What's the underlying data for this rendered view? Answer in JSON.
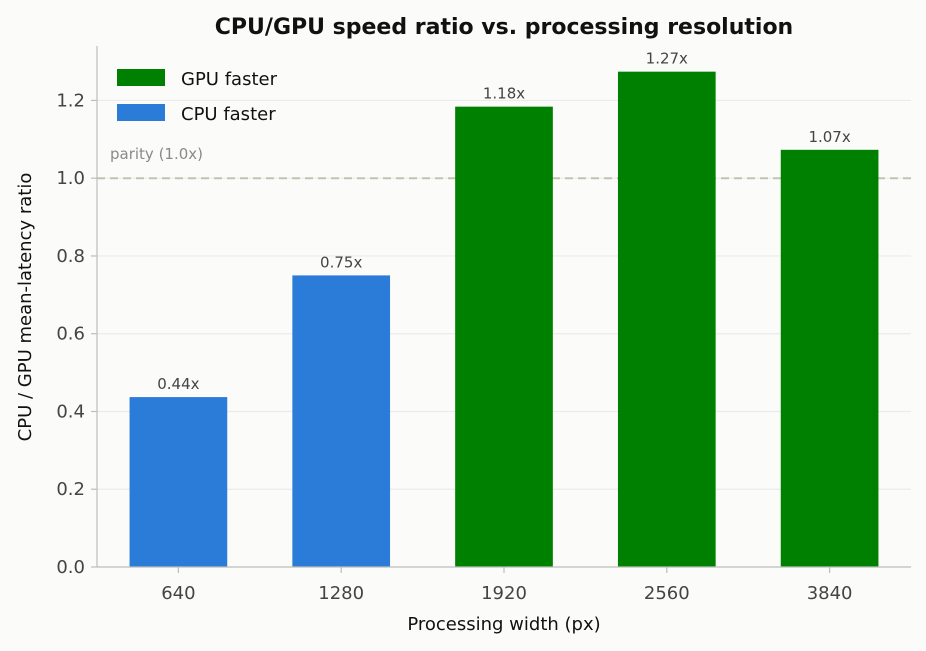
{
  "chart_data": {
    "type": "bar",
    "title": "CPU/GPU speed ratio vs. processing resolution",
    "xlabel": "Processing width (px)",
    "ylabel": "CPU / GPU mean-latency ratio",
    "categories": [
      "640",
      "1280",
      "1920",
      "2560",
      "3840"
    ],
    "values": [
      0.437,
      0.75,
      1.184,
      1.274,
      1.073
    ],
    "data_labels": [
      "0.44x",
      "0.75x",
      "1.18x",
      "1.27x",
      "1.07x"
    ],
    "bar_groups": [
      "CPU faster",
      "CPU faster",
      "GPU faster",
      "GPU faster",
      "GPU faster"
    ],
    "ylim": [
      0,
      1.34
    ],
    "yticks": [
      "0.0",
      "0.2",
      "0.4",
      "0.6",
      "0.8",
      "1.0",
      "1.2"
    ],
    "ytick_values": [
      0,
      0.2,
      0.4,
      0.6,
      0.8,
      1.0,
      1.2
    ],
    "reference_line": {
      "value": 1.0,
      "label": "parity (1.0x)",
      "style": "dashed"
    },
    "legend": [
      {
        "name": "GPU faster",
        "color": "#008000"
      },
      {
        "name": "CPU faster",
        "color": "#2b7bd8"
      }
    ],
    "legend_position": "top-left",
    "grid": "horizontal",
    "colors": {
      "gpu": "#008000",
      "cpu": "#2b7bd8",
      "parity": "#c0c4b0",
      "grid": "#ebebeb",
      "axis": "#bdbdbd"
    }
  }
}
